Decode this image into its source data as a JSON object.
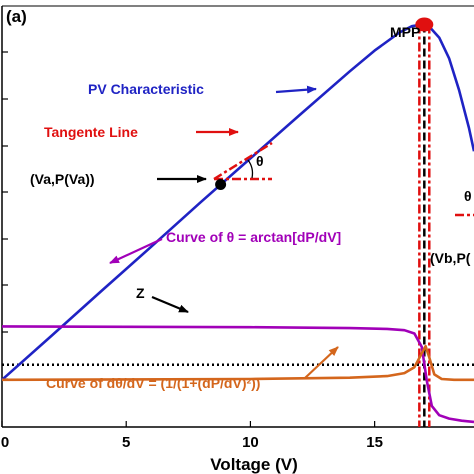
{
  "panel_label": "(a)",
  "chart_data": {
    "type": "line",
    "title": "",
    "xlabel": "Voltage (V)",
    "ylabel": "",
    "xlim": [
      0,
      19
    ],
    "ylim": [
      0,
      1
    ],
    "x_ticks": [
      0,
      5,
      10,
      15
    ],
    "x_tick_labels": [
      "0",
      "5",
      "10",
      "15"
    ],
    "grid": false,
    "series": [
      {
        "name": "PV Characteristic",
        "color": "#1f23c4",
        "x": [
          0,
          2,
          4,
          6,
          8,
          10,
          12,
          14,
          15,
          16,
          16.5,
          16.9,
          17.2,
          17.6,
          18,
          18.4,
          18.8,
          19
        ],
        "y": [
          0.112,
          0.217,
          0.323,
          0.428,
          0.534,
          0.638,
          0.742,
          0.845,
          0.894,
          0.937,
          0.952,
          0.956,
          0.951,
          0.925,
          0.875,
          0.8,
          0.71,
          0.655
        ]
      },
      {
        "name": "Curve of θ = arctan[dP/dV]",
        "color": "#a100b8",
        "x": [
          0,
          5,
          10,
          14,
          15.5,
          16.2,
          16.6,
          16.9,
          17.1,
          17.3,
          17.6,
          18,
          18.5,
          19
        ],
        "y": [
          0.239,
          0.238,
          0.237,
          0.235,
          0.233,
          0.23,
          0.222,
          0.19,
          0.11,
          0.05,
          0.028,
          0.02,
          0.015,
          0.012
        ]
      },
      {
        "name": "Curve of dθ/dV = (1/(1+(dP/dV)²))",
        "color": "#d4661c",
        "x": [
          0,
          5,
          10,
          14,
          15.5,
          16.2,
          16.6,
          16.9,
          17.05,
          17.2,
          17.4,
          17.7,
          18.2,
          19
        ],
        "y": [
          0.112,
          0.113,
          0.114,
          0.117,
          0.121,
          0.128,
          0.142,
          0.175,
          0.192,
          0.165,
          0.125,
          0.114,
          0.112,
          0.112
        ]
      }
    ],
    "reference_lines": [
      {
        "name": "Z",
        "orientation": "horizontal",
        "y": 0.148,
        "color": "#000000",
        "style": "dotted"
      },
      {
        "orientation": "vertical",
        "x": 16.8,
        "color": "#e01010",
        "style": "dashdot"
      },
      {
        "orientation": "vertical",
        "x": 17.0,
        "color": "#000000",
        "style": "dashed"
      },
      {
        "orientation": "vertical",
        "x": 17.2,
        "color": "#e01010",
        "style": "dashdot"
      }
    ],
    "points": [
      {
        "label": "MPP",
        "x": 17.0,
        "y": 0.956,
        "color": "#e01010"
      },
      {
        "label": "(Va,P(Va))",
        "x": 8.8,
        "y": 0.576,
        "color": "#000000"
      }
    ],
    "annotations": [
      {
        "text": "PV Characteristic",
        "color": "#1f23c4"
      },
      {
        "text": "Tangente Line",
        "color": "#e01010"
      },
      {
        "text": "(Va,P(Va))",
        "color": "#000000"
      },
      {
        "text": "θ",
        "color": "#000000"
      },
      {
        "text": "Curve of θ = arctan[dP/dV]",
        "color": "#a100b8"
      },
      {
        "text": "(Vb,P(",
        "color": "#000000"
      },
      {
        "text": "Z",
        "color": "#000000"
      },
      {
        "text": "Curve of dθ/dV = (1/(1+(dP/dV)²))",
        "color": "#d4661c"
      },
      {
        "text": "MPP",
        "color": "#000000"
      },
      {
        "text": "θ",
        "color": "#000000"
      }
    ]
  }
}
